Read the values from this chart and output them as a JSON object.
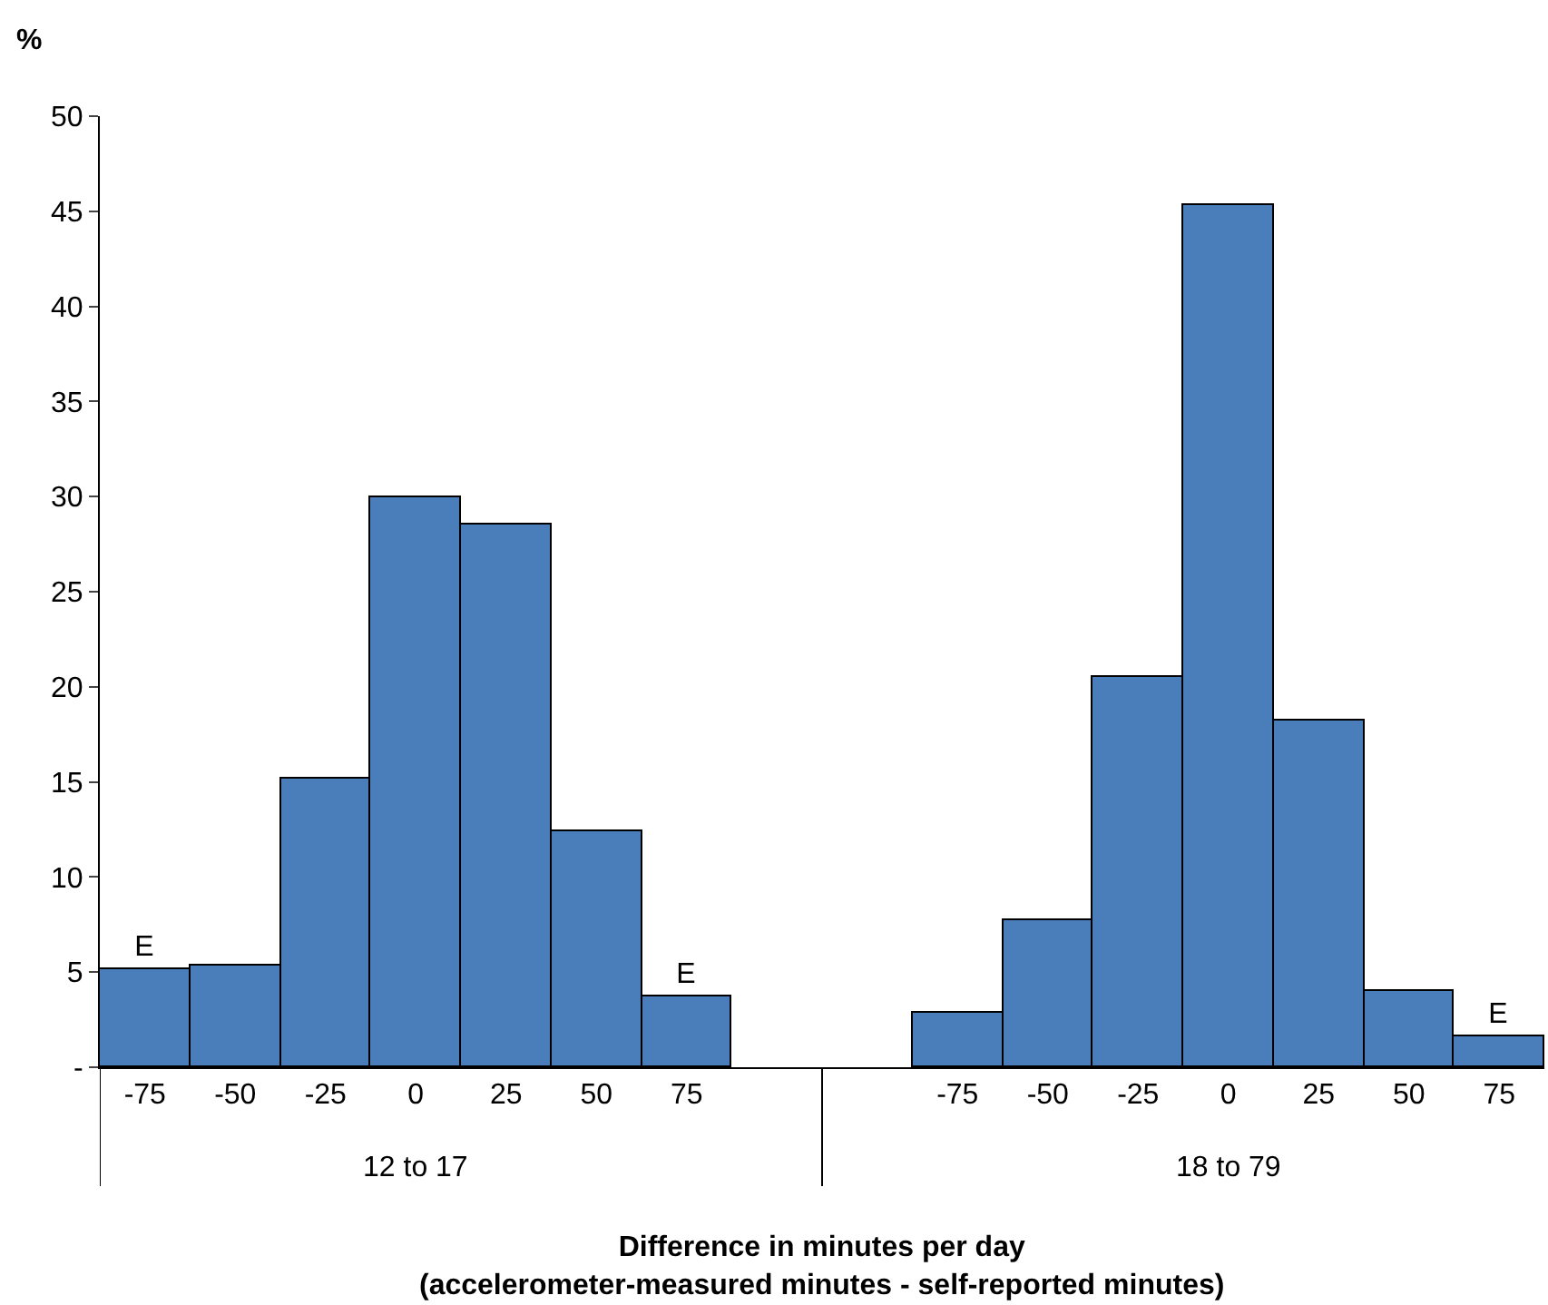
{
  "chart_data": {
    "type": "bar",
    "categories": [
      "-75",
      "-50",
      "-25",
      "0",
      "25",
      "50",
      "75",
      null,
      null,
      "-75",
      "-50",
      "-25",
      "0",
      "25",
      "50",
      "75"
    ],
    "values": [
      5.2,
      5.3,
      15.2,
      30.0,
      28.5,
      12.4,
      3.7,
      null,
      null,
      2.9,
      7.7,
      20.5,
      45.3,
      18.2,
      4.0,
      1.6
    ],
    "value_labels": [
      "E",
      null,
      null,
      null,
      null,
      null,
      "E",
      null,
      null,
      null,
      null,
      null,
      null,
      null,
      null,
      "E"
    ],
    "color": "#4a7ebb",
    "ylabel": "%",
    "xlabel": "Difference in minutes per day\n(accelerometer-measured minutes - self-reported minutes)",
    "annotations": [
      "12 to 17",
      "18 to 79"
    ],
    "ylim": [
      0,
      50
    ],
    "yticks": [
      {
        "value": 0,
        "label": "-"
      },
      5,
      10,
      15,
      20,
      25,
      30,
      35,
      40,
      45,
      50
    ],
    "legend": false
  }
}
